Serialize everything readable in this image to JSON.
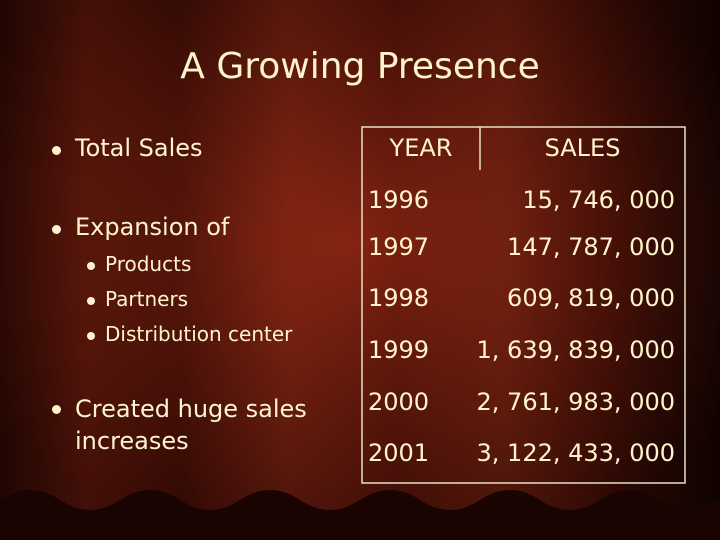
{
  "title": "A Growing Presence",
  "bullets": [
    {
      "text": "Total Sales"
    },
    {
      "text": "Expansion of",
      "sub": [
        "Products",
        "Partners",
        "Distribution center"
      ]
    },
    {
      "text": "Created huge sales increases"
    }
  ],
  "table": {
    "header": [
      "YEAR",
      "SALES"
    ],
    "rows": [
      [
        1996,
        "15, 746, 000"
      ],
      [
        1997,
        "147, 787, 000"
      ],
      [
        1998,
        "609, 819, 000"
      ],
      [
        1999,
        "1, 639, 839, 000"
      ],
      [
        2000,
        "2, 761, 983, 000"
      ],
      [
        2001,
        "3, 122, 433, 000"
      ]
    ]
  }
}
